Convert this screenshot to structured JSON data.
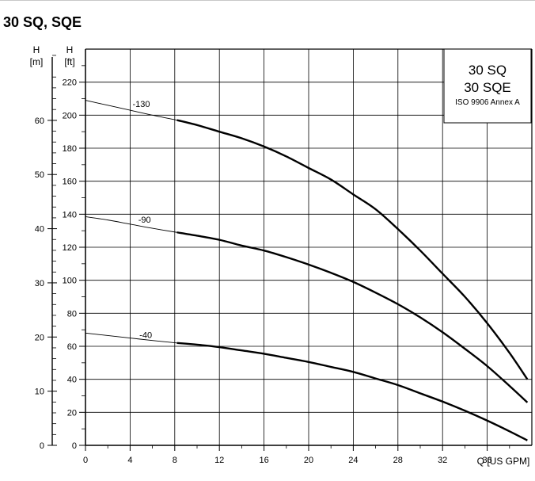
{
  "page": {
    "title": "30 SQ, SQE"
  },
  "chart_data": {
    "type": "line",
    "title": "30 SQ, SQE",
    "legend_box": {
      "line1": "30 SQ",
      "line2": "30 SQE",
      "line3": "ISO 9906 Annex A",
      "placement": "top-right"
    },
    "xlabel": "Q [US GPM]",
    "ylabel_ft": "H [ft]",
    "ylabel_m": "H [m]",
    "ylabel_ft_parts": {
      "h": "H",
      "unit": "[ft]"
    },
    "ylabel_m_parts": {
      "h": "H",
      "unit": "[m]"
    },
    "xlim": [
      0,
      40
    ],
    "ylim_ft": [
      0,
      240
    ],
    "ylim_m": [
      0,
      73.15
    ],
    "xticks": [
      "0",
      "4",
      "8",
      "12",
      "16",
      "20",
      "24",
      "28",
      "32",
      "36"
    ],
    "xtick_values": [
      0,
      4,
      8,
      12,
      16,
      20,
      24,
      28,
      32,
      36
    ],
    "yticks_ft": [
      "0",
      "20",
      "40",
      "60",
      "80",
      "100",
      "120",
      "140",
      "160",
      "180",
      "200",
      "220"
    ],
    "ytick_ft_values": [
      0,
      20,
      40,
      60,
      80,
      100,
      120,
      140,
      160,
      180,
      200,
      220
    ],
    "yticks_m": [
      "0",
      "10",
      "20",
      "30",
      "40",
      "50",
      "60"
    ],
    "ytick_m_values": [
      0,
      10,
      20,
      30,
      40,
      50,
      60
    ],
    "grid": true,
    "series": [
      {
        "name": "-130",
        "thin": {
          "x": [
            0,
            2,
            4,
            6,
            8.2
          ],
          "y": [
            209,
            206,
            203,
            200,
            197
          ]
        },
        "thick": {
          "x": [
            8.2,
            10,
            12,
            14,
            16,
            18,
            20,
            22,
            24,
            26,
            28,
            30,
            32,
            34,
            36,
            38,
            39.6
          ],
          "y": [
            197,
            194,
            190,
            186,
            181,
            175,
            168,
            161,
            152,
            143,
            131,
            118,
            104,
            90,
            74,
            56,
            40
          ]
        }
      },
      {
        "name": "-90",
        "thin": {
          "x": [
            0,
            2,
            4,
            6,
            8.2
          ],
          "y": [
            138.5,
            136.5,
            134,
            131.5,
            129
          ]
        },
        "thick": {
          "x": [
            8.2,
            10,
            12,
            14,
            16,
            18,
            20,
            22,
            24,
            26,
            28,
            30,
            32,
            34,
            36,
            38,
            39.6
          ],
          "y": [
            129,
            127,
            124.5,
            121,
            118,
            114,
            109.5,
            104.5,
            99,
            92.5,
            85.5,
            77.5,
            68.5,
            58.5,
            48,
            36,
            26
          ]
        }
      },
      {
        "name": "-40",
        "thin": {
          "x": [
            0,
            2,
            4,
            6,
            8.2
          ],
          "y": [
            68,
            66.5,
            65,
            63.5,
            62
          ]
        },
        "thick": {
          "x": [
            8.2,
            10,
            12,
            14,
            16,
            18,
            20,
            22,
            24,
            26,
            28,
            30,
            32,
            34,
            36,
            38,
            39.6
          ],
          "y": [
            62,
            61,
            59.5,
            57.5,
            55.5,
            53,
            50.5,
            47.5,
            44.5,
            40.5,
            36.5,
            31.5,
            26.5,
            21,
            15,
            8.5,
            3
          ]
        }
      }
    ],
    "series_label_x": [
      5.0,
      5.3,
      5.4
    ],
    "series_label_y": [
      205,
      135,
      65
    ]
  }
}
